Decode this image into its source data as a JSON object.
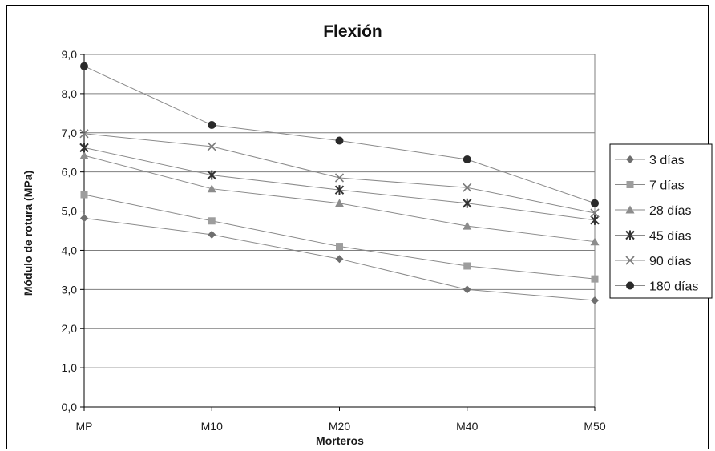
{
  "chart_data": {
    "type": "line",
    "title": "Flexión",
    "xlabel": "Morteros",
    "ylabel": "Módulo de rotura (MPa)",
    "categories": [
      "MP",
      "M10",
      "M20",
      "M40",
      "M50"
    ],
    "ylim": [
      0,
      9
    ],
    "ytick_labels": [
      "0,0",
      "1,0",
      "2,0",
      "3,0",
      "4,0",
      "5,0",
      "6,0",
      "7,0",
      "8,0",
      "9,0"
    ],
    "grid": true,
    "legend_position": "right",
    "series": [
      {
        "name": "3 días",
        "marker": "diamond",
        "color": "#6e6e6e",
        "values": [
          4.82,
          4.4,
          3.78,
          3.0,
          2.72
        ]
      },
      {
        "name": "7 días",
        "marker": "square",
        "color": "#9d9d9d",
        "values": [
          5.42,
          4.75,
          4.1,
          3.6,
          3.27
        ]
      },
      {
        "name": "28 días",
        "marker": "triangle",
        "color": "#8c8c8c",
        "values": [
          6.42,
          5.57,
          5.2,
          4.62,
          4.22
        ]
      },
      {
        "name": "45 días",
        "marker": "asterisk",
        "color": "#333333",
        "values": [
          6.62,
          5.92,
          5.54,
          5.2,
          4.77
        ]
      },
      {
        "name": "90 días",
        "marker": "x",
        "color": "#7a7a7a",
        "values": [
          6.98,
          6.65,
          5.85,
          5.6,
          4.95
        ]
      },
      {
        "name": "180 días",
        "marker": "circle",
        "color": "#2a2a2a",
        "values": [
          8.7,
          7.2,
          6.8,
          6.32,
          5.2
        ]
      }
    ]
  }
}
